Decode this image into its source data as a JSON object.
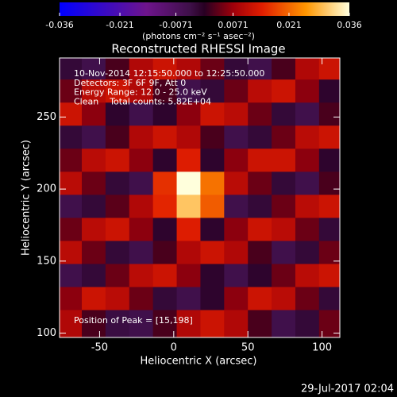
{
  "chart_data": {
    "type": "heatmap",
    "title": "Reconstructed RHESSI Image",
    "colorbar_label": "(photons cm⁻² s⁻¹ asec⁻²)",
    "x_label": "Heliocentric X (arcsec)",
    "y_label": "Heliocentric Y (arcsec)",
    "annotations": [
      "10-Nov-2014 12:15:50.000 to 12:25:50.000",
      "Detectors: 3F 6F 9F, Att 0",
      "Energy Range: 12.0 - 25.0 keV",
      "Clean    Total counts: 5.82E+04"
    ],
    "peak_label": "Position of Peak = [15,198]",
    "footer": "29-Jul-2017 02:04",
    "clim": [
      -0.036,
      0.036
    ],
    "cticks": [
      -0.036,
      -0.021,
      -0.0071,
      0.0071,
      0.021,
      0.036
    ],
    "xlim": [
      -77,
      112
    ],
    "ylim": [
      97,
      291
    ],
    "xticks": [
      -50,
      0,
      50,
      100
    ],
    "yticks": [
      100,
      150,
      200,
      250
    ],
    "x": [
      -70,
      -54,
      -38,
      -22,
      -6,
      10,
      26,
      42,
      58,
      74,
      90,
      106
    ],
    "y": [
      284,
      268,
      252,
      236,
      220,
      204,
      188,
      172,
      156,
      140,
      124,
      108
    ],
    "z": [
      [
        -0.002,
        -0.004,
        0.002,
        0.009,
        0.012,
        0.009,
        0.004,
        -0.002,
        -0.004,
        0.002,
        0.009,
        0.012
      ],
      [
        0.004,
        0.01,
        0.012,
        0.009,
        0.002,
        -0.004,
        -0.002,
        0.004,
        0.01,
        0.012,
        0.006,
        -0.001
      ],
      [
        0.012,
        0.006,
        -0.001,
        -0.004,
        -0.001,
        0.006,
        0.012,
        0.01,
        0.004,
        -0.002,
        -0.004,
        0.002
      ],
      [
        -0.002,
        -0.004,
        0.002,
        0.009,
        0.012,
        0.009,
        0.002,
        -0.004,
        -0.002,
        0.004,
        0.01,
        0.012
      ],
      [
        0.004,
        0.01,
        0.012,
        0.006,
        -0.001,
        0.014,
        -0.001,
        0.006,
        0.012,
        0.012,
        0.006,
        -0.001
      ],
      [
        0.01,
        0.004,
        -0.002,
        -0.004,
        0.016,
        0.036,
        0.022,
        0.01,
        0.004,
        -0.002,
        -0.004,
        0.002
      ],
      [
        -0.004,
        -0.002,
        0.003,
        0.009,
        0.015,
        0.03,
        0.02,
        -0.004,
        -0.002,
        0.004,
        0.01,
        0.012
      ],
      [
        0.004,
        0.01,
        0.012,
        0.006,
        -0.001,
        0.014,
        -0.001,
        0.006,
        0.012,
        0.01,
        0.004,
        -0.002
      ],
      [
        0.01,
        0.004,
        -0.002,
        -0.004,
        0.002,
        0.009,
        0.012,
        0.009,
        0.002,
        -0.004,
        -0.002,
        0.004
      ],
      [
        -0.004,
        -0.002,
        0.004,
        0.01,
        0.012,
        0.006,
        -0.001,
        -0.004,
        -0.001,
        0.004,
        0.01,
        0.012
      ],
      [
        0.006,
        0.012,
        0.01,
        0.004,
        -0.002,
        -0.004,
        -0.001,
        0.006,
        0.012,
        0.01,
        0.004,
        -0.002
      ],
      [
        0.009,
        0.002,
        -0.003,
        -0.004,
        0.002,
        0.009,
        0.012,
        0.009,
        0.002,
        -0.004,
        -0.002,
        0.004
      ]
    ]
  }
}
